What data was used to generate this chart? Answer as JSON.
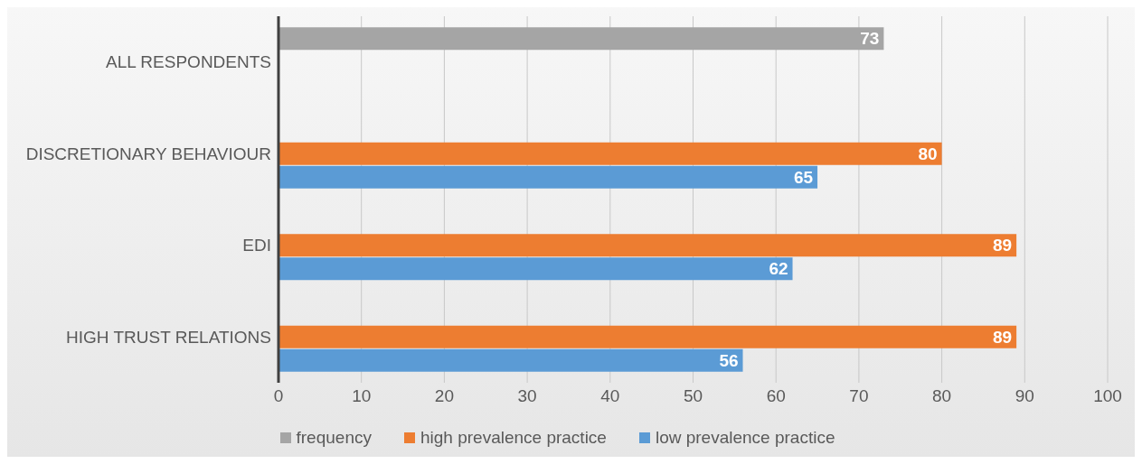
{
  "chart_data": {
    "type": "bar",
    "orientation": "horizontal",
    "categories": [
      "ALL RESPONDENTS",
      "DISCRETIONARY BEHAVIOUR",
      "EDI",
      "HIGH TRUST RELATIONS"
    ],
    "series": [
      {
        "name": "frequency",
        "color": "#a5a5a5",
        "values": [
          73,
          null,
          null,
          null
        ]
      },
      {
        "name": "high prevalence practice",
        "color": "#ed7d31",
        "values": [
          null,
          80,
          89,
          89
        ]
      },
      {
        "name": "low prevalence practice",
        "color": "#5b9bd5",
        "values": [
          null,
          65,
          62,
          56
        ]
      }
    ],
    "xlim": [
      0,
      100
    ],
    "xticks": [
      0,
      10,
      20,
      30,
      40,
      50,
      60,
      70,
      80,
      90,
      100
    ],
    "grid": "x",
    "legend": "bottom",
    "data_labels": true
  }
}
